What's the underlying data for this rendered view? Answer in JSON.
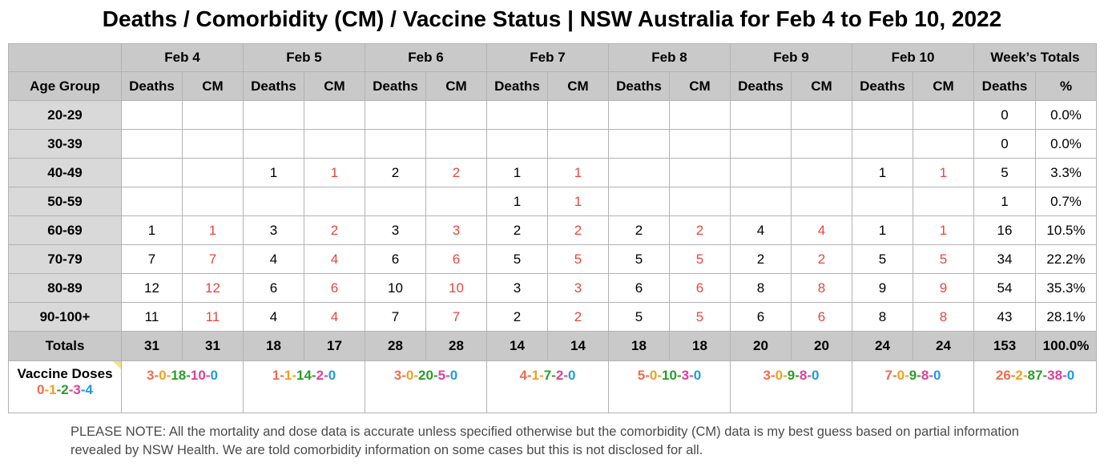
{
  "title": "Deaths / Comorbidity (CM) / Vaccine Status | NSW Australia for Feb 4 to Feb 10, 2022",
  "header": {
    "days": [
      "Feb 4",
      "Feb 5",
      "Feb 6",
      "Feb 7",
      "Feb 8",
      "Feb 9",
      "Feb 10"
    ],
    "weeks_totals": "Week’s Totals",
    "age_group": "Age Group",
    "deaths": "Deaths",
    "cm": "CM",
    "pct": "%"
  },
  "rows": [
    {
      "age": "20-29",
      "cells": [
        "",
        "",
        "",
        "",
        "",
        "",
        "",
        "",
        "",
        "",
        "",
        "",
        "",
        ""
      ],
      "total": "0",
      "pct": "0.0%"
    },
    {
      "age": "30-39",
      "cells": [
        "",
        "",
        "",
        "",
        "",
        "",
        "",
        "",
        "",
        "",
        "",
        "",
        "",
        ""
      ],
      "total": "0",
      "pct": "0.0%"
    },
    {
      "age": "40-49",
      "cells": [
        "",
        "",
        "1",
        "1",
        "2",
        "2",
        "1",
        "1",
        "",
        "",
        "",
        "",
        "1",
        "1"
      ],
      "total": "5",
      "pct": "3.3%"
    },
    {
      "age": "50-59",
      "cells": [
        "",
        "",
        "",
        "",
        "",
        "",
        "1",
        "1",
        "",
        "",
        "",
        "",
        "",
        ""
      ],
      "total": "1",
      "pct": "0.7%"
    },
    {
      "age": "60-69",
      "cells": [
        "1",
        "1",
        "3",
        "2",
        "3",
        "3",
        "2",
        "2",
        "2",
        "2",
        "4",
        "4",
        "1",
        "1"
      ],
      "total": "16",
      "pct": "10.5%"
    },
    {
      "age": "70-79",
      "cells": [
        "7",
        "7",
        "4",
        "4",
        "6",
        "6",
        "5",
        "5",
        "5",
        "5",
        "2",
        "2",
        "5",
        "5"
      ],
      "total": "34",
      "pct": "22.2%"
    },
    {
      "age": "80-89",
      "cells": [
        "12",
        "12",
        "6",
        "6",
        "10",
        "10",
        "3",
        "3",
        "6",
        "6",
        "8",
        "8",
        "9",
        "9"
      ],
      "total": "54",
      "pct": "35.3%"
    },
    {
      "age": "90-100+",
      "cells": [
        "11",
        "11",
        "4",
        "4",
        "7",
        "7",
        "2",
        "2",
        "5",
        "5",
        "6",
        "6",
        "8",
        "8"
      ],
      "total": "43",
      "pct": "28.1%"
    }
  ],
  "totals": {
    "label": "Totals",
    "cells": [
      "31",
      "31",
      "18",
      "17",
      "28",
      "28",
      "14",
      "14",
      "18",
      "18",
      "20",
      "20",
      "24",
      "24"
    ],
    "total": "153",
    "pct": "100.0%"
  },
  "vaccine": {
    "label": "Vaccine Doses",
    "legend": [
      "0",
      "1",
      "2",
      "3",
      "4"
    ],
    "days": [
      [
        "3",
        "0",
        "18",
        "10",
        "0"
      ],
      [
        "1",
        "1",
        "14",
        "2",
        "0"
      ],
      [
        "3",
        "0",
        "20",
        "5",
        "0"
      ],
      [
        "4",
        "1",
        "7",
        "2",
        "0"
      ],
      [
        "5",
        "0",
        "10",
        "3",
        "0"
      ],
      [
        "3",
        "0",
        "9",
        "8",
        "0"
      ],
      [
        "7",
        "0",
        "9",
        "8",
        "0"
      ]
    ],
    "week": [
      "26",
      "2",
      "87",
      "38",
      "0"
    ],
    "colors": [
      "#f26b4f",
      "#f0a020",
      "#2a9d2a",
      "#e0409a",
      "#1e9be0"
    ]
  },
  "note": "PLEASE NOTE: All the mortality and dose data is accurate unless specified otherwise but the comorbidity (CM) data is my best guess based on partial information revealed by NSW Health. We are told comorbidity information on some cases but this is not disclosed for all."
}
